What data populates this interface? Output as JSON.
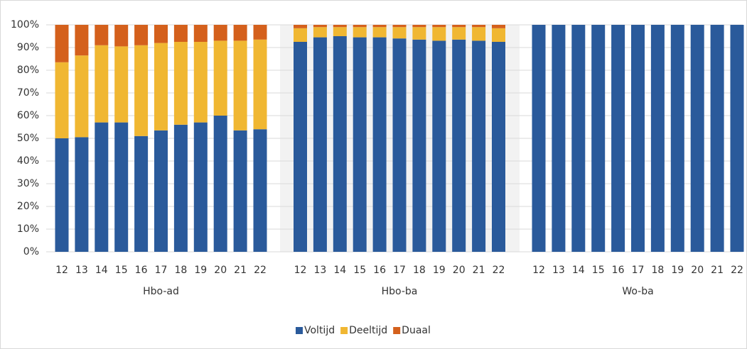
{
  "chart_data": {
    "type": "stacked_bar",
    "categories": [
      "12",
      "13",
      "14",
      "15",
      "16",
      "17",
      "18",
      "19",
      "20",
      "21",
      "22",
      "12",
      "13",
      "14",
      "15",
      "16",
      "17",
      "18",
      "19",
      "20",
      "21",
      "22",
      "12",
      "13",
      "14",
      "15",
      "16",
      "17",
      "18",
      "19",
      "20",
      "21",
      "22"
    ],
    "groups": [
      "Hbo-ad",
      "Hbo-ba",
      "Wo-ba"
    ],
    "series": [
      {
        "name": "Voltijd",
        "color": "#2a5a9b",
        "values": [
          50,
          50.5,
          57,
          57,
          51,
          53.5,
          56,
          57,
          60,
          53.5,
          54,
          92.5,
          94.5,
          95,
          94.5,
          94.5,
          94,
          93.5,
          93,
          93.5,
          93,
          92.5,
          100,
          100,
          100,
          100,
          100,
          100,
          100,
          100,
          100,
          100,
          100
        ]
      },
      {
        "name": "Deeltijd",
        "color": "#f0b732",
        "values": [
          33.5,
          36,
          34,
          33.5,
          40,
          38.5,
          36.5,
          35.5,
          33,
          39.5,
          39.5,
          6,
          4.5,
          4,
          4.5,
          4.5,
          5,
          5.5,
          6,
          5.5,
          6,
          6,
          0,
          0,
          0,
          0,
          0,
          0,
          0,
          0,
          0,
          0,
          0
        ]
      },
      {
        "name": "Duaal",
        "color": "#d4601c",
        "values": [
          16.5,
          13.5,
          9,
          9.5,
          9,
          8,
          7.5,
          7.5,
          7,
          7,
          6.5,
          1.5,
          1,
          1,
          1,
          1,
          1,
          1,
          1,
          1,
          1,
          1.5,
          0,
          0,
          0,
          0,
          0,
          0,
          0,
          0,
          0,
          0,
          0
        ]
      }
    ],
    "ylim": [
      0,
      100
    ],
    "yticks": [
      {
        "value": 0,
        "label": "0%"
      },
      {
        "value": 10,
        "label": "10%"
      },
      {
        "value": 20,
        "label": "20%"
      },
      {
        "value": 30,
        "label": "30%"
      },
      {
        "value": 40,
        "label": "40%"
      },
      {
        "value": 50,
        "label": "50%"
      },
      {
        "value": 60,
        "label": "60%"
      },
      {
        "value": 70,
        "label": "70%"
      },
      {
        "value": 80,
        "label": "80%"
      },
      {
        "value": 90,
        "label": "90%"
      },
      {
        "value": 100,
        "label": "100%"
      }
    ],
    "grid": true,
    "legend": "bottom"
  }
}
